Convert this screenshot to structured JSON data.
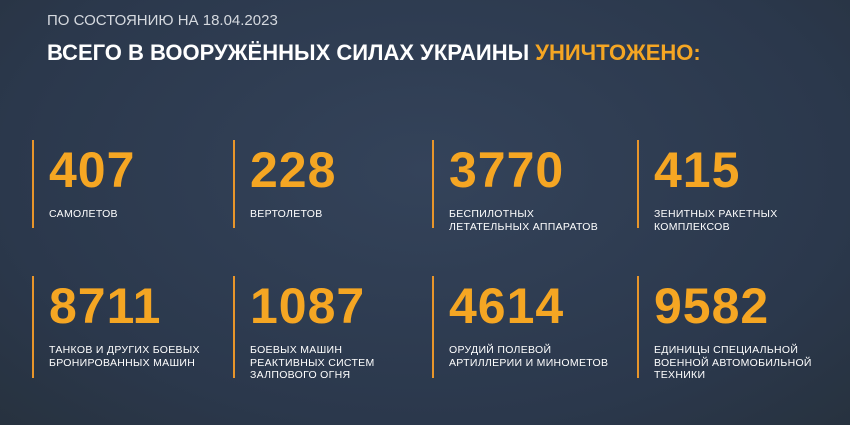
{
  "header": {
    "date": "ПО СОСТОЯНИЮ НА 18.04.2023",
    "title_main": "ВСЕГО В ВООРУЖЁННЫХ СИЛАХ УКРАИНЫ",
    "title_accent": "УНИЧТОЖЕНО:"
  },
  "stats": [
    {
      "value": 407,
      "label": [
        "САМОЛЕТОВ"
      ]
    },
    {
      "value": 228,
      "label": [
        "ВЕРТОЛЕТОВ"
      ]
    },
    {
      "value": 3770,
      "label": [
        "БЕСПИЛОТНЫХ",
        "ЛЕТАТЕЛЬНЫХ АППАРАТОВ"
      ]
    },
    {
      "value": 415,
      "label": [
        "ЗЕНИТНЫХ РАКЕТНЫХ",
        "КОМПЛЕКСОВ"
      ]
    },
    {
      "value": 8711,
      "label": [
        "ТАНКОВ И ДРУГИХ БОЕВЫХ",
        "БРОНИРОВАННЫХ МАШИН"
      ]
    },
    {
      "value": 1087,
      "label": [
        "БОЕВЫХ МАШИН",
        "РЕАКТИВНЫХ СИСТЕМ",
        "ЗАЛПОВОГО ОГНЯ"
      ]
    },
    {
      "value": 4614,
      "label": [
        "ОРУДИЙ ПОЛЕВОЙ",
        "АРТИЛЛЕРИИ И МИНОМЕТОВ"
      ]
    },
    {
      "value": 9582,
      "label": [
        "ЕДИНИЦЫ СПЕЦИАЛЬНОЙ",
        "ВОЕННОЙ АВТОМОБИЛЬНОЙ",
        "ТЕХНИКИ"
      ]
    }
  ]
}
